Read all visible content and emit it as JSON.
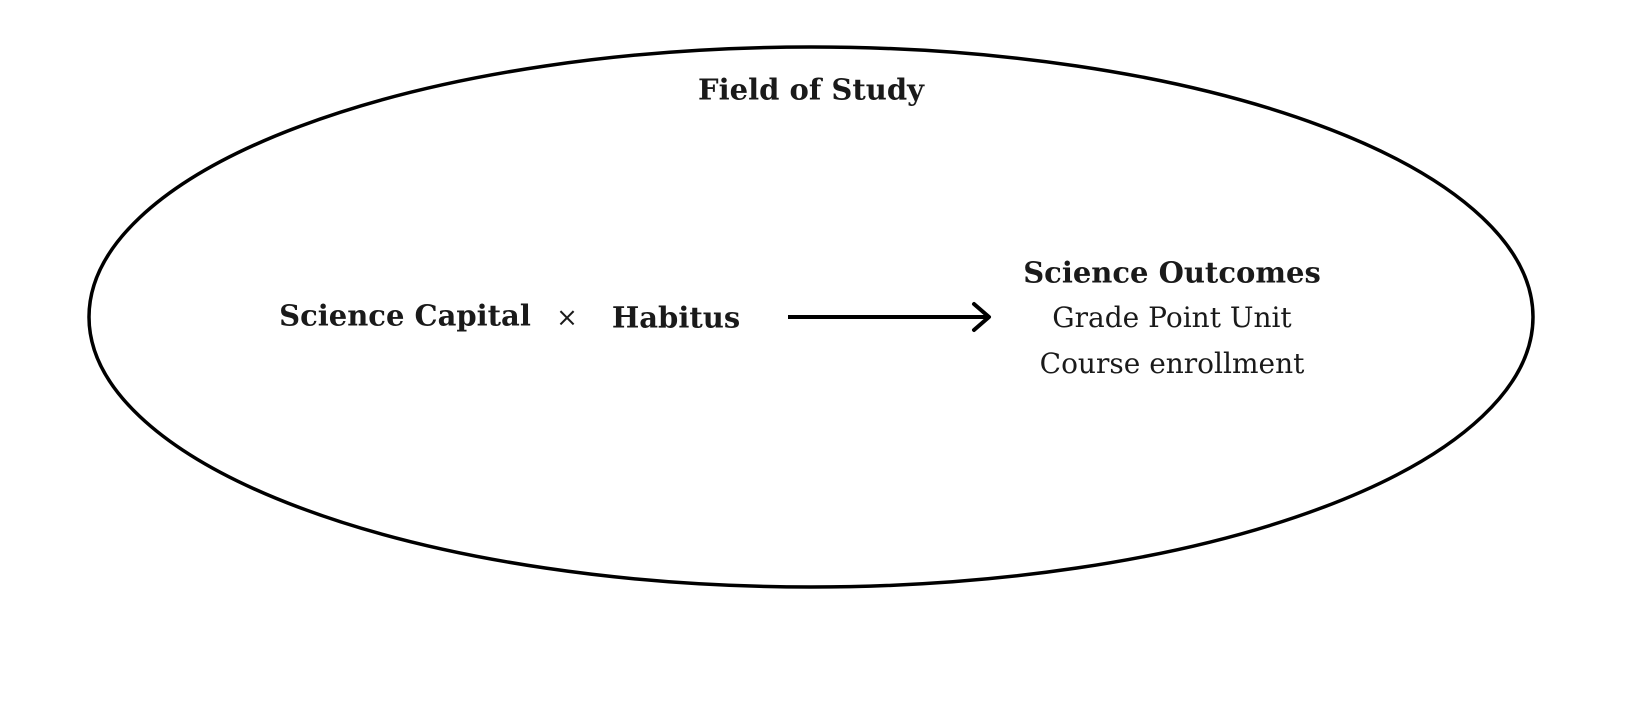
{
  "field": {
    "title": "Field of Study"
  },
  "inputs": {
    "left": "Science Capital",
    "operator": "×",
    "right": "Habitus"
  },
  "outcomes": {
    "title": "Science Outcomes",
    "items": [
      "Grade Point Unit",
      "Course enrollment"
    ]
  },
  "colors": {
    "stroke": "#000000",
    "text": "#1a1a1a",
    "background": "#ffffff"
  }
}
